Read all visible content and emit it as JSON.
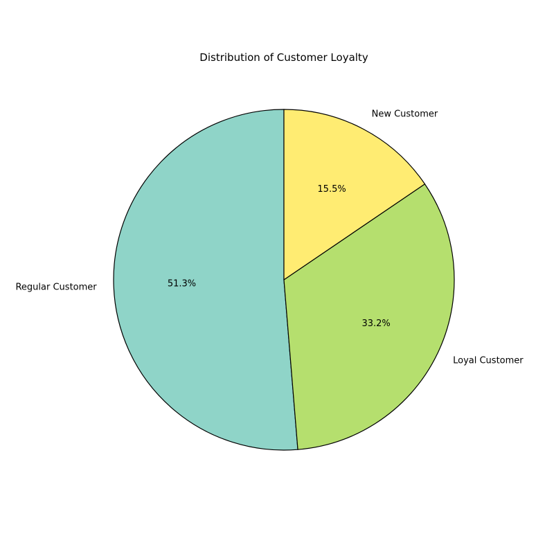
{
  "chart_data": {
    "type": "pie",
    "title": "Distribution of Customer Loyalty",
    "start_angle_deg": 90,
    "direction": "counterclockwise",
    "slices": [
      {
        "label": "Regular Customer",
        "value": 51.3,
        "pct_label": "51.3%",
        "color": "#8fd4c8"
      },
      {
        "label": "Loyal Customer",
        "value": 33.2,
        "pct_label": "33.2%",
        "color": "#b5df6e"
      },
      {
        "label": "New Customer",
        "value": 15.5,
        "pct_label": "15.5%",
        "color": "#ffec72"
      }
    ],
    "edge_color": "#000000"
  }
}
